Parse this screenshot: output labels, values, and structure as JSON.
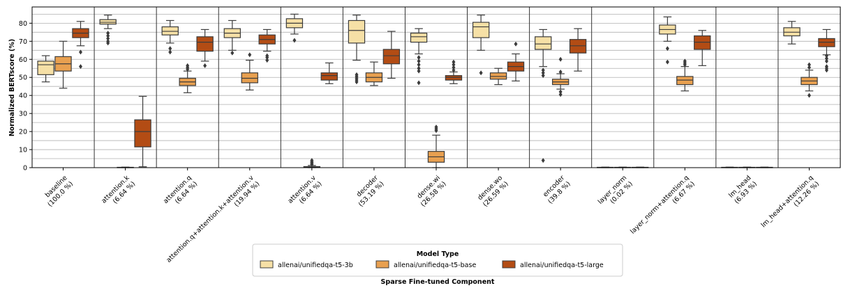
{
  "chart_data": {
    "type": "boxplot",
    "ylabel": "Normalized BERTscore (%)",
    "xlabel": "Sparse Fine-tuned Component",
    "ylim": [
      0,
      89
    ],
    "yticks": [
      0,
      10,
      20,
      30,
      40,
      50,
      60,
      70,
      80
    ],
    "grid": true,
    "legend": {
      "title": "Model Type",
      "placement": "bottom-center",
      "entries": [
        "allenai/unifiedqa-t5-3b",
        "allenai/unifiedqa-t5-base",
        "allenai/unifiedqa-t5-large"
      ]
    },
    "colors": [
      "#f6e0a6",
      "#e8a050",
      "#b34c14"
    ],
    "categories": [
      {
        "name": "baseline",
        "pct": "(100.0 %)"
      },
      {
        "name": "attention.k",
        "pct": "(6.64 %)"
      },
      {
        "name": "attention.q",
        "pct": "(6.64 %)"
      },
      {
        "name": "attention.q+attention.k+attention.v",
        "pct": "(19.94 %)"
      },
      {
        "name": "attention.v",
        "pct": "(6.64 %)"
      },
      {
        "name": "decoder",
        "pct": "(53.19 %)"
      },
      {
        "name": "dense.wi",
        "pct": "(26.58 %)"
      },
      {
        "name": "dense.wo",
        "pct": "(26.59 %)"
      },
      {
        "name": "encoder",
        "pct": "(39.8 %)"
      },
      {
        "name": "layer_norm",
        "pct": "(0.02 %)"
      },
      {
        "name": "layer_norm+attention.q",
        "pct": "(6.67 %)"
      },
      {
        "name": "lm_head",
        "pct": "(6.93 %)"
      },
      {
        "name": "lm_head+attention.q",
        "pct": "(12.26 %)"
      }
    ],
    "series": [
      {
        "name": "allenai/unifiedqa-t5-3b",
        "boxes": [
          {
            "q1": 51.5,
            "median": 57.0,
            "q3": 59.0,
            "wlo": 47.5,
            "whi": 62.0,
            "outliers": []
          },
          {
            "q1": 79.5,
            "median": 80.5,
            "q3": 82.0,
            "wlo": 77.0,
            "whi": 84.5,
            "outliers": [
              69.0,
              70.0,
              71.5,
              73.0,
              74.5
            ]
          },
          {
            "q1": 73.5,
            "median": 75.5,
            "q3": 78.0,
            "wlo": 69.0,
            "whi": 81.5,
            "outliers": [
              64.0,
              66.0
            ]
          },
          {
            "q1": 72.0,
            "median": 74.5,
            "q3": 77.0,
            "wlo": 65.0,
            "whi": 81.5,
            "outliers": [
              63.5
            ]
          },
          {
            "q1": 77.5,
            "median": 80.0,
            "q3": 82.5,
            "wlo": 74.0,
            "whi": 85.0,
            "outliers": [
              70.5
            ]
          },
          {
            "q1": 69.0,
            "median": 76.0,
            "q3": 81.5,
            "wlo": 59.5,
            "whi": 84.5,
            "outliers": [
              47.5,
              48.5,
              49.5,
              50.5,
              51.5
            ]
          },
          {
            "q1": 69.5,
            "median": 72.5,
            "q3": 74.5,
            "wlo": 63.0,
            "whi": 77.0,
            "outliers": [
              47.0,
              53.5,
              55.0,
              57.0,
              59.0,
              61.0
            ]
          },
          {
            "q1": 72.0,
            "median": 78.0,
            "q3": 80.5,
            "wlo": 65.0,
            "whi": 84.5,
            "outliers": [
              52.5
            ]
          },
          {
            "q1": 65.5,
            "median": 68.5,
            "q3": 72.5,
            "wlo": 56.0,
            "whi": 76.5,
            "outliers": [
              4.0,
              51.0,
              52.5,
              54.0
            ]
          },
          {
            "q1": 0.0,
            "median": 0.1,
            "q3": 0.2,
            "wlo": 0.0,
            "whi": 0.3,
            "outliers": []
          },
          {
            "q1": 74.0,
            "median": 76.5,
            "q3": 79.0,
            "wlo": 70.0,
            "whi": 83.5,
            "outliers": [
              58.5,
              66.0
            ]
          },
          {
            "q1": 0.0,
            "median": 0.1,
            "q3": 0.2,
            "wlo": 0.0,
            "whi": 0.3,
            "outliers": []
          },
          {
            "q1": 73.0,
            "median": 75.0,
            "q3": 77.5,
            "wlo": 68.5,
            "whi": 81.0,
            "outliers": []
          }
        ]
      },
      {
        "name": "allenai/unifiedqa-t5-base",
        "boxes": [
          {
            "q1": 53.5,
            "median": 57.5,
            "q3": 61.5,
            "wlo": 44.0,
            "whi": 70.0,
            "outliers": []
          },
          {
            "q1": 0.0,
            "median": 0.1,
            "q3": 0.2,
            "wlo": 0.0,
            "whi": 0.3,
            "outliers": []
          },
          {
            "q1": 45.5,
            "median": 47.5,
            "q3": 49.5,
            "wlo": 41.5,
            "whi": 53.5,
            "outliers": [
              54.5,
              55.5,
              56.5
            ]
          },
          {
            "q1": 47.0,
            "median": 49.5,
            "q3": 52.5,
            "wlo": 43.0,
            "whi": 59.5,
            "outliers": [
              62.5
            ]
          },
          {
            "q1": 0.1,
            "median": 0.3,
            "q3": 0.6,
            "wlo": 0.0,
            "whi": 1.2,
            "outliers": [
              1.8,
              2.5,
              3.2,
              4.0
            ]
          },
          {
            "q1": 47.5,
            "median": 50.0,
            "q3": 52.5,
            "wlo": 45.5,
            "whi": 58.5,
            "outliers": []
          },
          {
            "q1": 3.0,
            "median": 6.0,
            "q3": 9.0,
            "wlo": 0.0,
            "whi": 18.0,
            "outliers": [
              20.5,
              21.5,
              22.5
            ]
          },
          {
            "q1": 49.0,
            "median": 50.5,
            "q3": 52.5,
            "wlo": 46.0,
            "whi": 55.0,
            "outliers": []
          },
          {
            "q1": 46.0,
            "median": 47.5,
            "q3": 49.0,
            "wlo": 43.5,
            "whi": 52.0,
            "outliers": [
              40.5,
              42.0,
              53.0,
              60.0
            ]
          },
          {
            "q1": 0.0,
            "median": 0.1,
            "q3": 0.2,
            "wlo": 0.0,
            "whi": 0.3,
            "outliers": []
          },
          {
            "q1": 46.0,
            "median": 48.5,
            "q3": 50.5,
            "wlo": 42.5,
            "whi": 56.0,
            "outliers": [
              57.0,
              58.0,
              59.0
            ]
          },
          {
            "q1": 0.0,
            "median": 0.1,
            "q3": 0.2,
            "wlo": 0.0,
            "whi": 0.3,
            "outliers": []
          },
          {
            "q1": 46.0,
            "median": 48.0,
            "q3": 50.0,
            "wlo": 42.5,
            "whi": 54.0,
            "outliers": [
              40.0,
              55.5,
              57.0
            ]
          }
        ]
      },
      {
        "name": "allenai/unifiedqa-t5-large",
        "boxes": [
          {
            "q1": 72.0,
            "median": 74.5,
            "q3": 77.0,
            "wlo": 67.5,
            "whi": 81.0,
            "outliers": [
              56.0,
              64.0
            ]
          },
          {
            "q1": 11.5,
            "median": 20.0,
            "q3": 26.5,
            "wlo": 0.5,
            "whi": 39.5,
            "outliers": []
          },
          {
            "q1": 64.5,
            "median": 69.5,
            "q3": 72.5,
            "wlo": 59.0,
            "whi": 76.5,
            "outliers": [
              56.5
            ]
          },
          {
            "q1": 68.5,
            "median": 71.0,
            "q3": 73.5,
            "wlo": 64.5,
            "whi": 76.5,
            "outliers": [
              59.5,
              61.0,
              62.0
            ]
          },
          {
            "q1": 48.5,
            "median": 51.0,
            "q3": 52.5,
            "wlo": 46.5,
            "whi": 58.0,
            "outliers": []
          },
          {
            "q1": 57.5,
            "median": 62.0,
            "q3": 65.5,
            "wlo": 49.5,
            "whi": 75.5,
            "outliers": []
          },
          {
            "q1": 48.5,
            "median": 50.0,
            "q3": 51.0,
            "wlo": 46.5,
            "whi": 53.0,
            "outliers": [
              54.0,
              55.5,
              57.0,
              58.5
            ]
          },
          {
            "q1": 53.5,
            "median": 56.0,
            "q3": 58.5,
            "wlo": 48.0,
            "whi": 63.0,
            "outliers": [
              68.5
            ]
          },
          {
            "q1": 63.5,
            "median": 67.5,
            "q3": 71.0,
            "wlo": 53.5,
            "whi": 77.0,
            "outliers": []
          },
          {
            "q1": 0.0,
            "median": 0.1,
            "q3": 0.2,
            "wlo": 0.0,
            "whi": 0.3,
            "outliers": []
          },
          {
            "q1": 65.5,
            "median": 69.5,
            "q3": 73.0,
            "wlo": 56.5,
            "whi": 76.0,
            "outliers": []
          },
          {
            "q1": 0.0,
            "median": 0.1,
            "q3": 0.2,
            "wlo": 0.0,
            "whi": 0.3,
            "outliers": []
          },
          {
            "q1": 67.0,
            "median": 69.5,
            "q3": 71.5,
            "wlo": 62.5,
            "whi": 76.5,
            "outliers": [
              54.0,
              55.0,
              56.0,
              59.0,
              60.5,
              62.0
            ]
          }
        ]
      }
    ]
  }
}
